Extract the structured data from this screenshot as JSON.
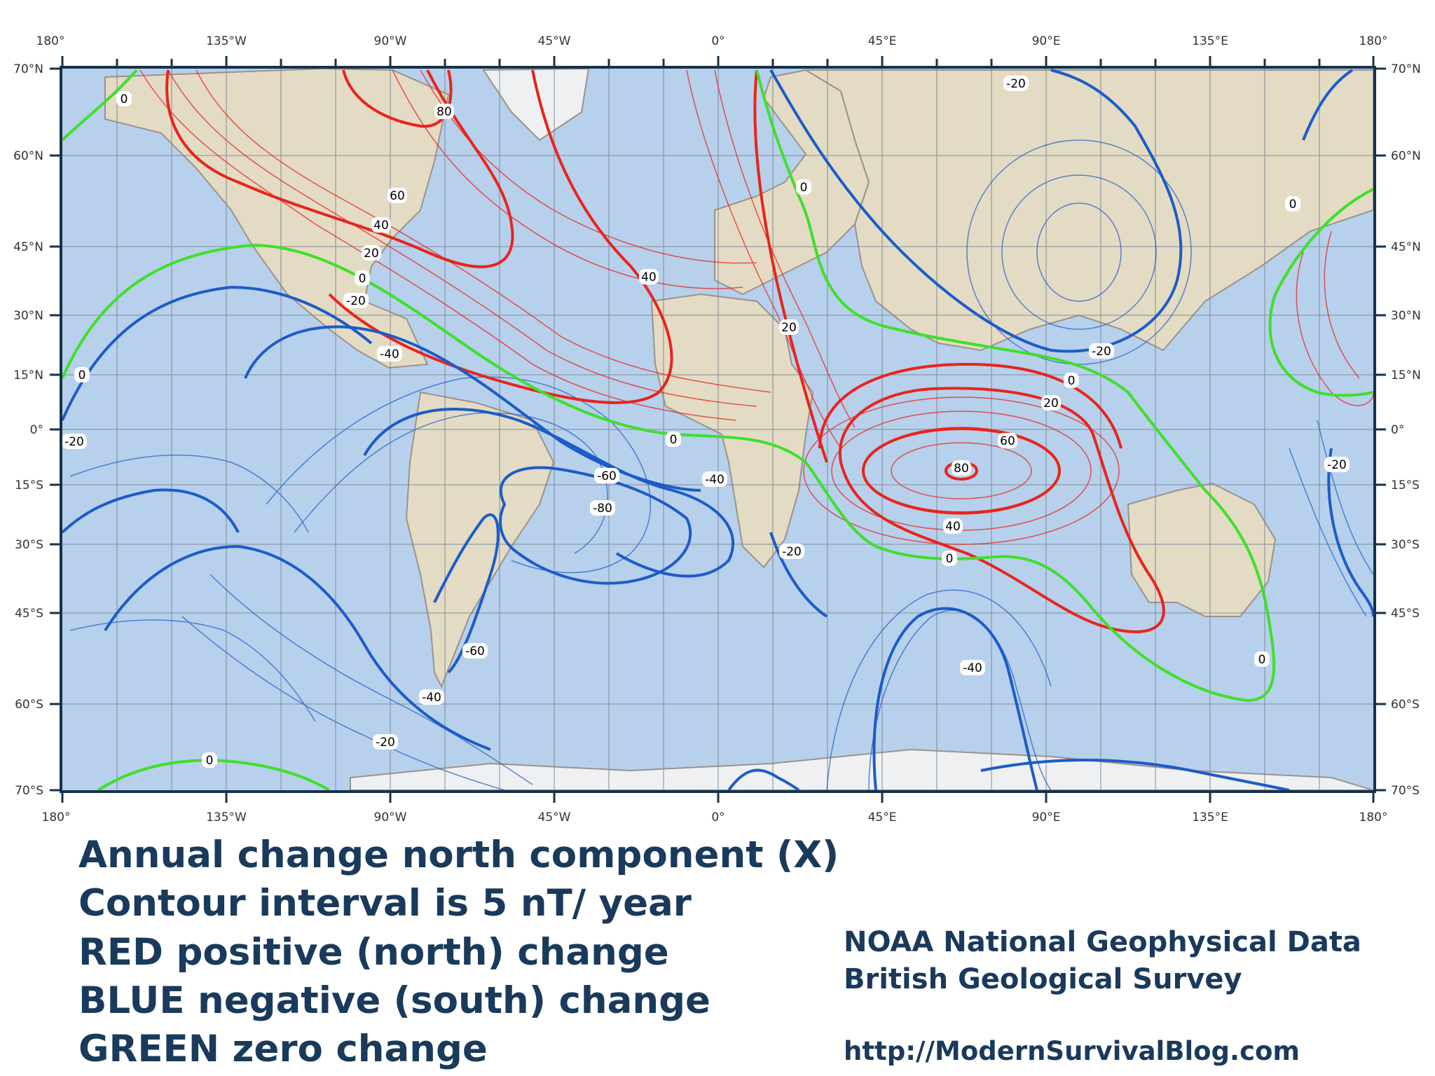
{
  "map": {
    "longitude_ticks": [
      "180°",
      "135°W",
      "90°W",
      "45°W",
      "0°",
      "45°E",
      "90°E",
      "135°E",
      "180°"
    ],
    "latitude_ticks": [
      "70°N",
      "60°N",
      "45°N",
      "30°N",
      "15°N",
      "0°",
      "15°S",
      "30°S",
      "45°S",
      "60°S",
      "70°S"
    ],
    "contour_labels": {
      "red": [
        "80",
        "60",
        "40",
        "20",
        "40",
        "20",
        "20",
        "60",
        "80",
        "40"
      ],
      "green": [
        "0",
        "0",
        "0",
        "0",
        "0",
        "0",
        "0",
        "0",
        "0"
      ],
      "blue": [
        "-20",
        "-40",
        "-60",
        "-80",
        "-40",
        "-20",
        "-20",
        "-40",
        "-20",
        "-20",
        "-60",
        "-40",
        "-20",
        "-20"
      ]
    },
    "colors": {
      "positive": "#e8241c",
      "negative": "#1c5cc8",
      "zero": "#3ee02a",
      "frame": "#16324a",
      "ocean": "#b7d0ec",
      "land": "#e8dcc4"
    }
  },
  "caption": {
    "title": "Annual change north component (X)",
    "interval": "Contour interval is 5 nT/ year",
    "red": "RED positive (north) change",
    "blue": "BLUE negative (south) change",
    "green": "GREEN zero change"
  },
  "credits": {
    "line1": "NOAA National Geophysical Data",
    "line2": "British Geological Survey",
    "url": "http://ModernSurvivalBlog.com"
  }
}
